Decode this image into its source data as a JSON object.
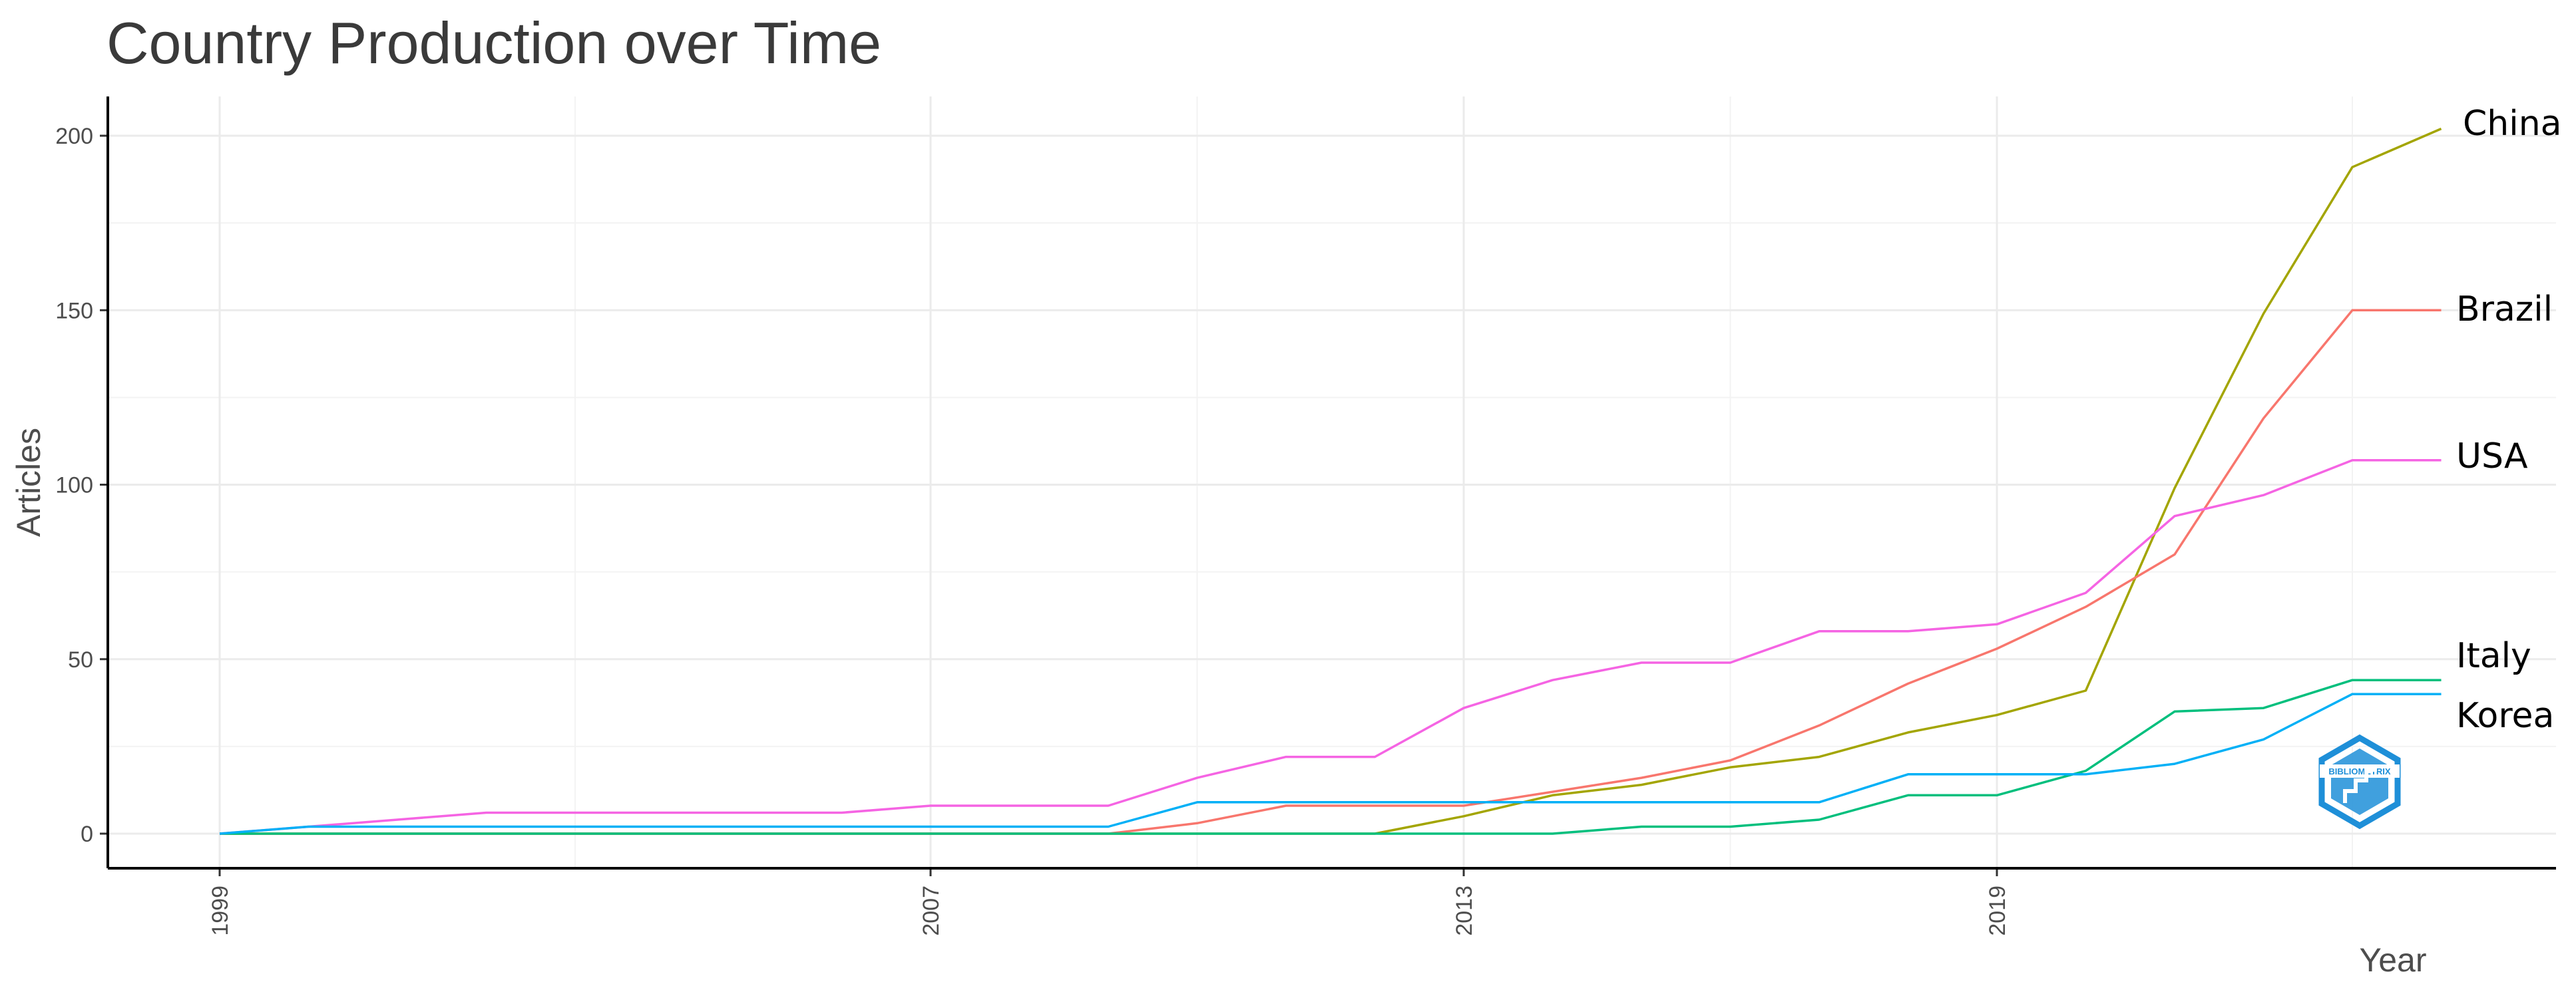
{
  "title": "Country Production over Time",
  "chart_data": {
    "type": "line",
    "title": "Country Production over Time",
    "xlabel": "Year",
    "ylabel": "Articles",
    "x_ticks": [
      1999,
      2007,
      2013,
      2019
    ],
    "y_ticks": [
      0,
      50,
      100,
      150,
      200
    ],
    "xlim": [
      1999,
      2024
    ],
    "ylim": [
      0,
      202
    ],
    "grid": true,
    "legend": "none",
    "x": [
      1999,
      2000,
      2001,
      2002,
      2003,
      2004,
      2005,
      2006,
      2007,
      2008,
      2009,
      2010,
      2011,
      2012,
      2013,
      2014,
      2015,
      2016,
      2017,
      2018,
      2019,
      2020,
      2021,
      2022,
      2023,
      2024
    ],
    "series": [
      {
        "name": "China",
        "color": "#A3A500",
        "values": [
          0,
          0,
          0,
          0,
          0,
          0,
          0,
          0,
          0,
          0,
          0,
          0,
          0,
          0,
          5,
          11,
          14,
          19,
          22,
          29,
          34,
          41,
          99,
          149,
          191,
          202
        ]
      },
      {
        "name": "Brazil",
        "color": "#F8766D",
        "values": [
          0,
          0,
          0,
          0,
          0,
          0,
          0,
          0,
          0,
          0,
          0,
          3,
          8,
          8,
          8,
          12,
          16,
          21,
          31,
          43,
          53,
          65,
          80,
          119,
          150,
          150
        ]
      },
      {
        "name": "USA",
        "color": "#F564E3",
        "values": [
          0,
          2,
          4,
          6,
          6,
          6,
          6,
          6,
          8,
          8,
          8,
          16,
          22,
          22,
          36,
          44,
          49,
          49,
          58,
          58,
          60,
          69,
          91,
          97,
          107,
          107
        ]
      },
      {
        "name": "Italy",
        "color": "#00BF7D",
        "values": [
          0,
          0,
          0,
          0,
          0,
          0,
          0,
          0,
          0,
          0,
          0,
          0,
          0,
          0,
          0,
          0,
          2,
          2,
          4,
          11,
          11,
          18,
          35,
          36,
          44,
          44
        ]
      },
      {
        "name": "Korea",
        "color": "#00B0F6",
        "values": [
          0,
          2,
          2,
          2,
          2,
          2,
          2,
          2,
          2,
          2,
          2,
          9,
          9,
          9,
          9,
          9,
          9,
          9,
          9,
          17,
          17,
          17,
          20,
          27,
          40,
          40
        ]
      }
    ]
  },
  "logo": {
    "name": "bibliometrix-logo",
    "text": "BIBLIOMETRIX",
    "color": "#1e8fd8"
  }
}
